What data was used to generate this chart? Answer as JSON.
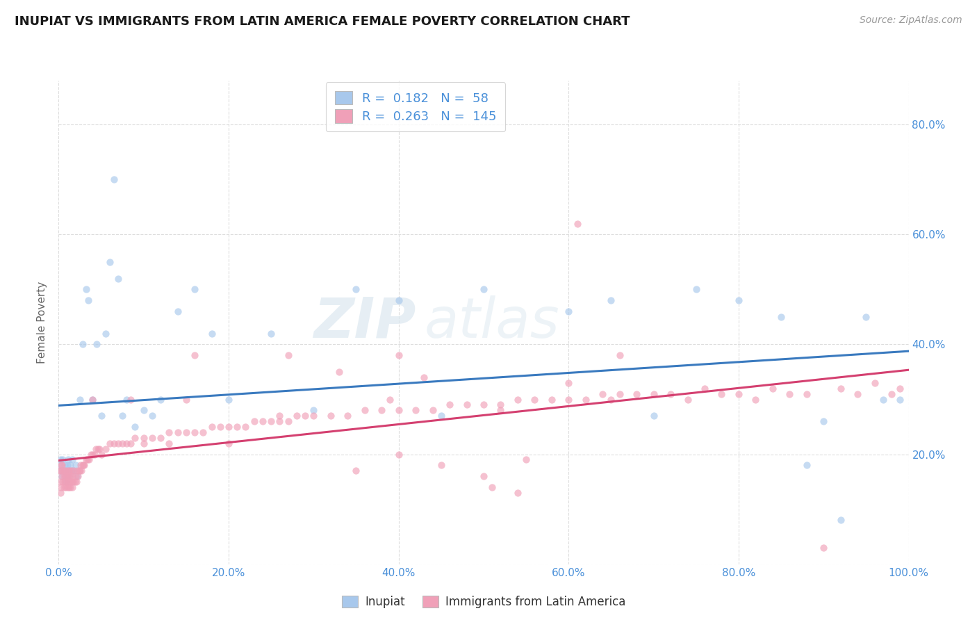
{
  "title": "INUPIAT VS IMMIGRANTS FROM LATIN AMERICA FEMALE POVERTY CORRELATION CHART",
  "source": "Source: ZipAtlas.com",
  "ylabel": "Female Poverty",
  "watermark_zip": "ZIP",
  "watermark_atlas": "atlas",
  "series": [
    {
      "name": "Inupiat",
      "R": 0.182,
      "N": 58,
      "color": "#a8c8ec",
      "line_color": "#3a7abf",
      "points_x": [
        0.001,
        0.002,
        0.003,
        0.004,
        0.005,
        0.006,
        0.007,
        0.008,
        0.009,
        0.01,
        0.011,
        0.012,
        0.013,
        0.014,
        0.015,
        0.016,
        0.018,
        0.02,
        0.022,
        0.025,
        0.028,
        0.032,
        0.035,
        0.04,
        0.045,
        0.05,
        0.055,
        0.06,
        0.065,
        0.07,
        0.075,
        0.08,
        0.09,
        0.1,
        0.11,
        0.12,
        0.14,
        0.16,
        0.18,
        0.2,
        0.25,
        0.3,
        0.35,
        0.4,
        0.45,
        0.5,
        0.6,
        0.65,
        0.7,
        0.75,
        0.8,
        0.85,
        0.88,
        0.9,
        0.92,
        0.95,
        0.97,
        0.99
      ],
      "points_y": [
        0.18,
        0.19,
        0.17,
        0.16,
        0.19,
        0.17,
        0.18,
        0.16,
        0.15,
        0.18,
        0.19,
        0.17,
        0.16,
        0.18,
        0.17,
        0.19,
        0.17,
        0.18,
        0.16,
        0.3,
        0.4,
        0.5,
        0.48,
        0.3,
        0.4,
        0.27,
        0.42,
        0.55,
        0.7,
        0.52,
        0.27,
        0.3,
        0.25,
        0.28,
        0.27,
        0.3,
        0.46,
        0.5,
        0.42,
        0.3,
        0.42,
        0.28,
        0.5,
        0.48,
        0.27,
        0.5,
        0.46,
        0.48,
        0.27,
        0.5,
        0.48,
        0.45,
        0.18,
        0.26,
        0.08,
        0.45,
        0.3,
        0.3
      ]
    },
    {
      "name": "Immigrants from Latin America",
      "R": 0.263,
      "N": 145,
      "color": "#f0a0b8",
      "line_color": "#d44070",
      "points_x": [
        0.001,
        0.001,
        0.002,
        0.002,
        0.003,
        0.003,
        0.004,
        0.004,
        0.005,
        0.005,
        0.006,
        0.006,
        0.007,
        0.007,
        0.008,
        0.008,
        0.009,
        0.009,
        0.01,
        0.01,
        0.011,
        0.011,
        0.012,
        0.012,
        0.013,
        0.013,
        0.014,
        0.014,
        0.015,
        0.015,
        0.016,
        0.016,
        0.017,
        0.018,
        0.019,
        0.02,
        0.021,
        0.022,
        0.023,
        0.024,
        0.025,
        0.026,
        0.027,
        0.028,
        0.029,
        0.03,
        0.032,
        0.034,
        0.036,
        0.038,
        0.04,
        0.042,
        0.044,
        0.046,
        0.048,
        0.05,
        0.055,
        0.06,
        0.065,
        0.07,
        0.075,
        0.08,
        0.085,
        0.09,
        0.1,
        0.11,
        0.12,
        0.13,
        0.14,
        0.15,
        0.16,
        0.17,
        0.18,
        0.19,
        0.2,
        0.21,
        0.22,
        0.23,
        0.24,
        0.25,
        0.26,
        0.27,
        0.28,
        0.29,
        0.3,
        0.32,
        0.34,
        0.36,
        0.38,
        0.4,
        0.42,
        0.44,
        0.46,
        0.48,
        0.5,
        0.52,
        0.54,
        0.56,
        0.58,
        0.6,
        0.62,
        0.64,
        0.66,
        0.68,
        0.7,
        0.72,
        0.74,
        0.76,
        0.78,
        0.8,
        0.82,
        0.84,
        0.86,
        0.88,
        0.9,
        0.92,
        0.94,
        0.96,
        0.98,
        0.99,
        0.35,
        0.4,
        0.45,
        0.5,
        0.55,
        0.13,
        0.26,
        0.39,
        0.52,
        0.65,
        0.1,
        0.2,
        0.6,
        0.15,
        0.61,
        0.43,
        0.51,
        0.33,
        0.27,
        0.04,
        0.54,
        0.4,
        0.66,
        0.16,
        0.085
      ],
      "points_y": [
        0.15,
        0.17,
        0.13,
        0.17,
        0.14,
        0.18,
        0.16,
        0.18,
        0.15,
        0.17,
        0.14,
        0.16,
        0.15,
        0.17,
        0.14,
        0.16,
        0.15,
        0.17,
        0.14,
        0.16,
        0.15,
        0.17,
        0.14,
        0.16,
        0.15,
        0.17,
        0.14,
        0.16,
        0.15,
        0.17,
        0.14,
        0.16,
        0.15,
        0.17,
        0.15,
        0.16,
        0.15,
        0.17,
        0.16,
        0.17,
        0.17,
        0.18,
        0.17,
        0.18,
        0.18,
        0.18,
        0.19,
        0.19,
        0.19,
        0.2,
        0.2,
        0.2,
        0.21,
        0.21,
        0.21,
        0.2,
        0.21,
        0.22,
        0.22,
        0.22,
        0.22,
        0.22,
        0.22,
        0.23,
        0.23,
        0.23,
        0.23,
        0.24,
        0.24,
        0.24,
        0.24,
        0.24,
        0.25,
        0.25,
        0.25,
        0.25,
        0.25,
        0.26,
        0.26,
        0.26,
        0.26,
        0.26,
        0.27,
        0.27,
        0.27,
        0.27,
        0.27,
        0.28,
        0.28,
        0.28,
        0.28,
        0.28,
        0.29,
        0.29,
        0.29,
        0.29,
        0.3,
        0.3,
        0.3,
        0.3,
        0.3,
        0.31,
        0.31,
        0.31,
        0.31,
        0.31,
        0.3,
        0.32,
        0.31,
        0.31,
        0.3,
        0.32,
        0.31,
        0.31,
        0.03,
        0.32,
        0.31,
        0.33,
        0.31,
        0.32,
        0.17,
        0.2,
        0.18,
        0.16,
        0.19,
        0.22,
        0.27,
        0.3,
        0.28,
        0.3,
        0.22,
        0.22,
        0.33,
        0.3,
        0.62,
        0.34,
        0.14,
        0.35,
        0.38,
        0.3,
        0.13,
        0.38,
        0.38,
        0.38,
        0.3
      ]
    }
  ],
  "xlim": [
    0.0,
    1.0
  ],
  "ylim": [
    0.0,
    0.88
  ],
  "xticks": [
    0.0,
    0.2,
    0.4,
    0.6,
    0.8,
    1.0
  ],
  "xticklabels": [
    "0.0%",
    "20.0%",
    "40.0%",
    "60.0%",
    "80.0%",
    "100.0%"
  ],
  "yticks_right": [
    0.2,
    0.4,
    0.6,
    0.8
  ],
  "yticklabels_right": [
    "20.0%",
    "40.0%",
    "60.0%",
    "80.0%"
  ],
  "grid_color": "#dddddd",
  "background_color": "#ffffff",
  "marker_size": 55,
  "marker_alpha": 0.65,
  "tick_color": "#4a90d9",
  "title_fontsize": 13,
  "source_fontsize": 10,
  "ylabel_fontsize": 11
}
